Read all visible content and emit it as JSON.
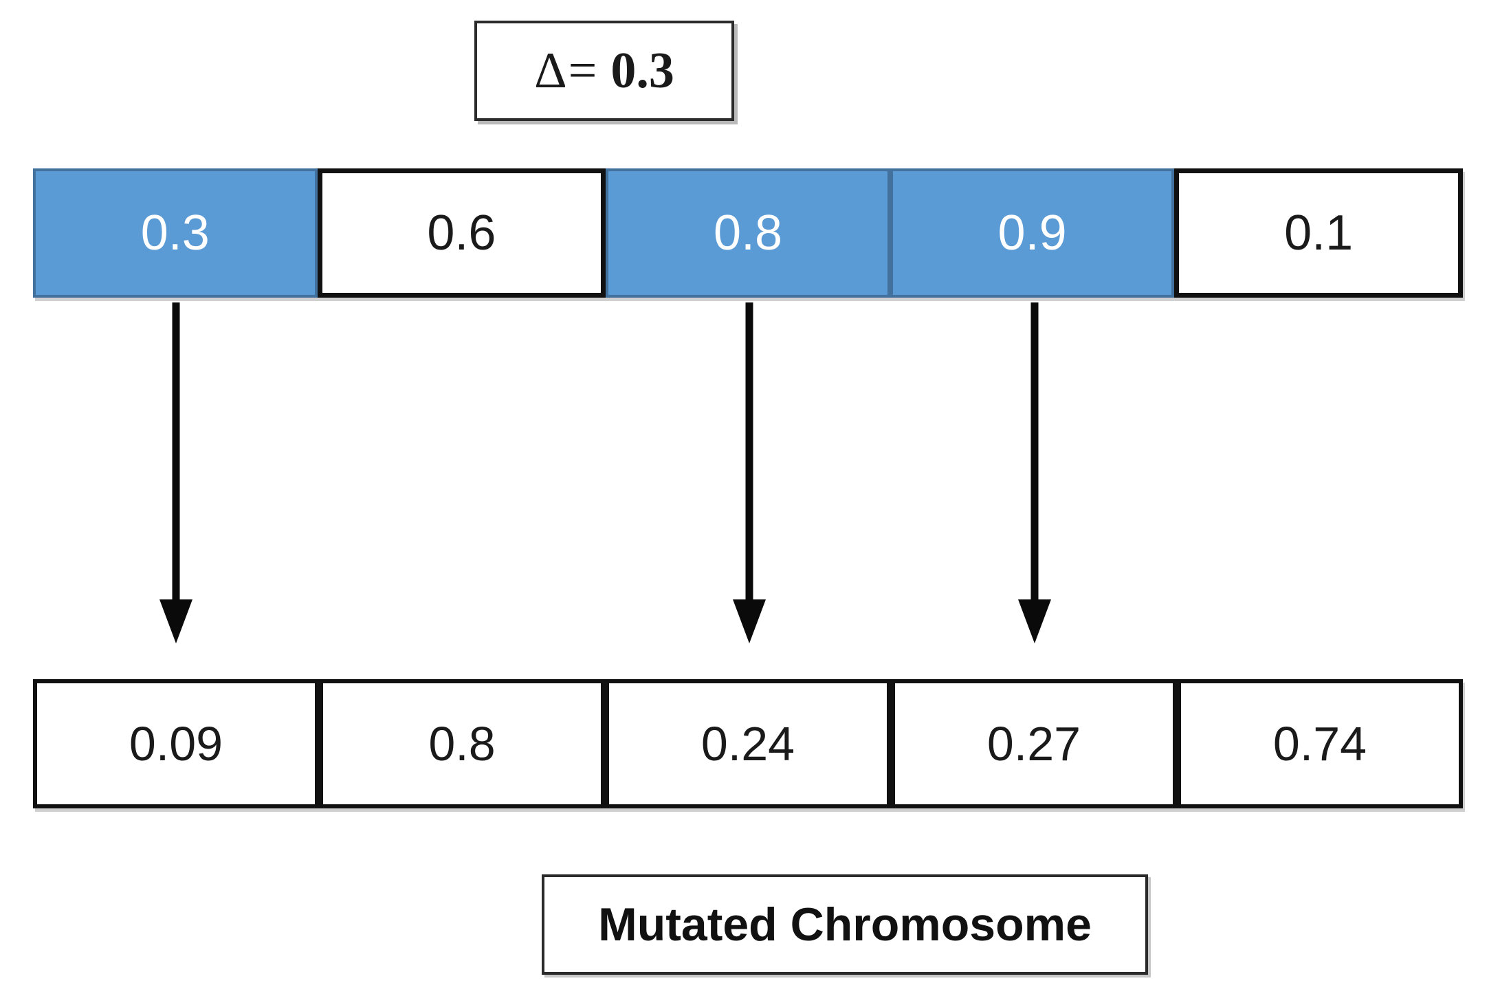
{
  "figure": {
    "delta_box": {
      "symbol": "Δ=",
      "value": "0.3"
    },
    "parent_chromosome": {
      "cells": [
        {
          "value": "0.3",
          "mutated": true
        },
        {
          "value": "0.6",
          "mutated": false
        },
        {
          "value": "0.8",
          "mutated": true
        },
        {
          "value": "0.9",
          "mutated": true
        },
        {
          "value": "0.1",
          "mutated": false
        }
      ]
    },
    "mutated_chromosome": {
      "cells": [
        {
          "value": "0.09"
        },
        {
          "value": "0.8"
        },
        {
          "value": "0.24"
        },
        {
          "value": "0.27"
        },
        {
          "value": "0.74"
        }
      ]
    },
    "arrows": [
      {
        "from_value": "0.3",
        "to_value": "0.09"
      },
      {
        "from_value": "0.8",
        "to_value": "0.24"
      },
      {
        "from_value": "0.9",
        "to_value": "0.27"
      }
    ],
    "caption": "Mutated Chromosome",
    "colors": {
      "mutated_fill": "#5B9BD5",
      "mutated_border": "#41719C",
      "cell_border": "#111111"
    }
  }
}
